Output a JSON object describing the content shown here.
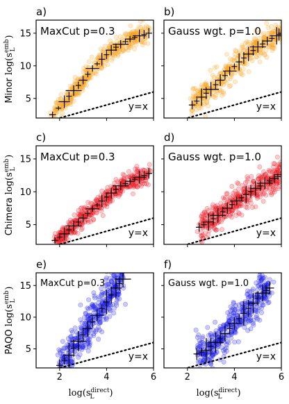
{
  "chart_data": [
    {
      "type": "scatter",
      "panel": "a)",
      "row": "Minor",
      "inset": "MaxCut p=0.3",
      "ref_line": "y=x",
      "color": "#f5a623",
      "xlim": [
        1,
        6
      ],
      "ylim": [
        2,
        17
      ],
      "x_ticks": [
        "2",
        "4",
        "6"
      ],
      "y_ticks": [
        "5",
        "10",
        "15"
      ],
      "trend": [
        [
          1.7,
          2.5
        ],
        [
          2.2,
          4.5
        ],
        [
          2.6,
          6.2
        ],
        [
          3.0,
          7.8
        ],
        [
          3.4,
          9.6
        ],
        [
          3.8,
          11.0
        ],
        [
          4.2,
          12.4
        ],
        [
          4.6,
          13.3
        ],
        [
          5.0,
          14.1
        ],
        [
          5.4,
          14.6
        ],
        [
          5.8,
          15.0
        ]
      ],
      "spread": 0.8
    },
    {
      "type": "scatter",
      "panel": "b)",
      "row": "Minor",
      "inset": "Gauss wgt. p=1.0",
      "ref_line": "y=x",
      "color": "#f5a623",
      "xlim": [
        1,
        6
      ],
      "ylim": [
        2,
        17
      ],
      "x_ticks": [
        "2",
        "4",
        "6"
      ],
      "y_ticks": [
        "5",
        "10",
        "15"
      ],
      "trend": [
        [
          2.2,
          4.0
        ],
        [
          2.6,
          5.2
        ],
        [
          3.0,
          6.4
        ],
        [
          3.4,
          7.8
        ],
        [
          3.8,
          9.2
        ],
        [
          4.2,
          10.6
        ],
        [
          4.6,
          11.8
        ],
        [
          5.0,
          12.9
        ],
        [
          5.4,
          13.8
        ],
        [
          5.8,
          14.6
        ],
        [
          6.0,
          15.0
        ]
      ],
      "spread": 1.1
    },
    {
      "type": "scatter",
      "panel": "c)",
      "row": "Chimera",
      "inset": "MaxCut p=0.3",
      "ref_line": "y=x",
      "color": "#e8141e",
      "xlim": [
        1,
        6
      ],
      "ylim": [
        2,
        17
      ],
      "x_ticks": [
        "2",
        "4",
        "6"
      ],
      "y_ticks": [
        "5",
        "10",
        "15"
      ],
      "trend": [
        [
          1.8,
          2.6
        ],
        [
          2.2,
          3.6
        ],
        [
          2.6,
          4.8
        ],
        [
          3.0,
          6.0
        ],
        [
          3.4,
          7.4
        ],
        [
          3.8,
          8.6
        ],
        [
          4.2,
          9.8
        ],
        [
          4.6,
          10.9
        ],
        [
          5.0,
          11.6
        ],
        [
          5.4,
          12.2
        ],
        [
          5.8,
          12.8
        ]
      ],
      "spread": 0.8
    },
    {
      "type": "scatter",
      "panel": "d)",
      "row": "Chimera",
      "inset": "Gauss wgt. p=1.0",
      "ref_line": "y=x",
      "color": "#e8141e",
      "xlim": [
        1,
        6
      ],
      "ylim": [
        2,
        17
      ],
      "x_ticks": [
        "2",
        "4",
        "6"
      ],
      "y_ticks": [
        "5",
        "10",
        "15"
      ],
      "trend": [
        [
          2.5,
          4.6
        ],
        [
          2.9,
          5.4
        ],
        [
          3.3,
          6.4
        ],
        [
          3.7,
          7.5
        ],
        [
          4.1,
          8.6
        ],
        [
          4.5,
          9.6
        ],
        [
          4.9,
          10.5
        ],
        [
          5.3,
          11.3
        ],
        [
          5.7,
          12.0
        ],
        [
          6.0,
          12.6
        ]
      ],
      "spread": 1.1
    },
    {
      "type": "scatter",
      "panel": "e)",
      "row": "PAQO",
      "inset": "MaxCut p=0.3",
      "ref_line": "y=x",
      "color": "#1414e6",
      "xlim": [
        1,
        6
      ],
      "ylim": [
        2,
        17
      ],
      "x_ticks": [
        "2",
        "4",
        "6"
      ],
      "y_ticks": [
        "5",
        "10",
        "15"
      ],
      "trend": [
        [
          2.0,
          2.4
        ],
        [
          2.4,
          4.0
        ],
        [
          2.8,
          6.2
        ],
        [
          3.2,
          8.2
        ],
        [
          3.6,
          10.3
        ],
        [
          4.0,
          12.4
        ],
        [
          4.4,
          14.6
        ],
        [
          4.7,
          16.0
        ]
      ],
      "spread": 1.6
    },
    {
      "type": "scatter",
      "panel": "f)",
      "row": "PAQO",
      "inset": "Gauss wgt. p=1.0",
      "ref_line": "y=x",
      "color": "#1414e6",
      "xlim": [
        1,
        6
      ],
      "ylim": [
        2,
        17
      ],
      "x_ticks": [
        "2",
        "4",
        "6"
      ],
      "y_ticks": [
        "5",
        "10",
        "15"
      ],
      "trend": [
        [
          2.4,
          4.2
        ],
        [
          2.8,
          4.8
        ],
        [
          3.2,
          6.0
        ],
        [
          3.6,
          7.4
        ],
        [
          4.0,
          9.0
        ],
        [
          4.4,
          10.6
        ],
        [
          4.8,
          12.2
        ],
        [
          5.2,
          13.8
        ],
        [
          5.5,
          14.6
        ]
      ],
      "spread": 1.6
    }
  ],
  "labels": {
    "row_ylabels": [
      {
        "word": "Minor",
        "expr": "log(s",
        "sup": "emb",
        "sub": "L",
        "close": ")"
      },
      {
        "word": "Chimera",
        "expr": "log(s",
        "sup": "emb",
        "sub": "L",
        "close": ")"
      },
      {
        "word": "PAQO",
        "expr": "log(s",
        "sup": "emb",
        "sub": "L",
        "close": ")"
      }
    ],
    "xlabel": {
      "expr": "log(s",
      "sup": "direct",
      "sub": "L",
      "close": ")"
    }
  }
}
